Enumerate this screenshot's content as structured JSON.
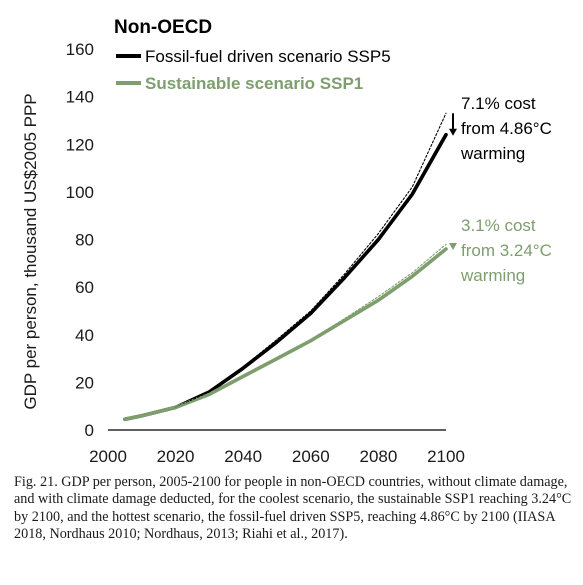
{
  "chart_data": {
    "type": "line",
    "title": "Non-OECD",
    "xlabel": "",
    "ylabel": "GDP per person, thousand US$2005 PPP",
    "xlim": [
      2000,
      2100
    ],
    "ylim": [
      0,
      160
    ],
    "xticks": [
      2000,
      2020,
      2040,
      2060,
      2080,
      2100
    ],
    "yticks": [
      0,
      20,
      40,
      60,
      80,
      100,
      120,
      140,
      160
    ],
    "grid": false,
    "legend_position": "top-left",
    "series": [
      {
        "name": "Fossil-fuel driven scenario SSP5",
        "color": "#000000",
        "style": "solid",
        "x": [
          2005,
          2010,
          2020,
          2030,
          2040,
          2050,
          2060,
          2070,
          2080,
          2090,
          2100
        ],
        "y": [
          4.5,
          6,
          9.5,
          16,
          26,
          37,
          49,
          64,
          80,
          99,
          124
        ]
      },
      {
        "name": "Sustainable scenario SSP1",
        "color": "#7e9e6e",
        "style": "solid",
        "x": [
          2005,
          2010,
          2020,
          2030,
          2040,
          2050,
          2060,
          2070,
          2080,
          2090,
          2100
        ],
        "y": [
          4.5,
          6,
          9.5,
          15,
          22.5,
          30,
          37.5,
          46,
          54.5,
          64.5,
          76
        ]
      },
      {
        "color": "#000000",
        "style": "dotted",
        "x": [
          2020,
          2030,
          2040,
          2050,
          2060,
          2070,
          2080,
          2090,
          2100
        ],
        "y": [
          9.5,
          16,
          26.5,
          38,
          50,
          65.5,
          82.5,
          102,
          133
        ]
      },
      {
        "color": "#7e9e6e",
        "style": "dotted",
        "x": [
          2020,
          2030,
          2040,
          2050,
          2060,
          2070,
          2080,
          2090,
          2100
        ],
        "y": [
          9.5,
          15,
          22.7,
          30.3,
          38,
          46.8,
          56,
          66,
          78
        ]
      }
    ],
    "annotations": [
      {
        "lines": [
          "7.1% cost",
          "from 4.86°C",
          "warming"
        ],
        "color": "#000000",
        "arrow_from": 133,
        "arrow_to": 124
      },
      {
        "lines": [
          "3.1% cost",
          "from 3.24°C",
          "warming"
        ],
        "color": "#7e9e6e",
        "arrow_from": 78,
        "arrow_to": 76
      }
    ]
  },
  "caption": "Fig. 21. GDP per person, 2005-2100 for people in non-OECD countries, without climate damage, and with climate damage deducted, for the coolest scenario, the sustainable SSP1 reaching 3.24°C by 2100, and the hottest scenario, the fossil-fuel driven SSP5, reaching 4.86°C by 2100 (IIASA 2018, Nordhaus 2010; Nordhaus, 2013; Riahi et al., 2017)."
}
